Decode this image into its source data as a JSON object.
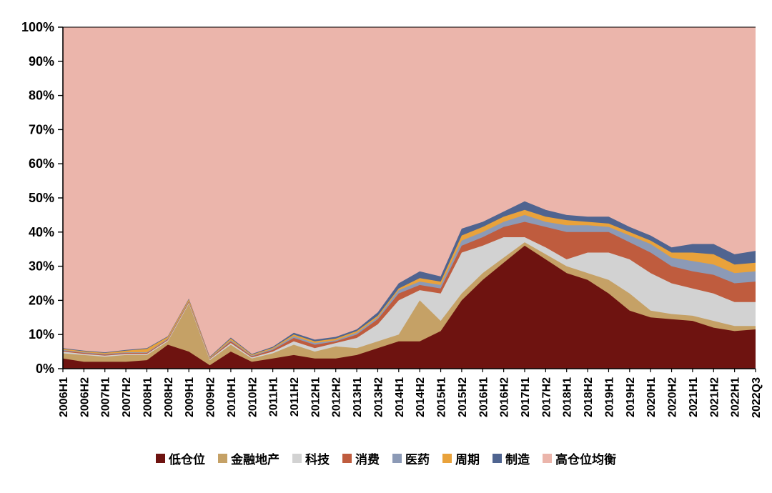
{
  "page": {
    "background": "#FFFFFF"
  },
  "chart_data": {
    "type": "area",
    "stacked": true,
    "percent": true,
    "title": "",
    "xlabel": "",
    "ylabel": "",
    "ylim": [
      0,
      100
    ],
    "grid": false,
    "legend_position": "bottom",
    "y_ticks": [
      "0%",
      "10%",
      "20%",
      "30%",
      "40%",
      "50%",
      "60%",
      "70%",
      "80%",
      "90%",
      "100%"
    ],
    "categories": [
      "2006H1",
      "2006H2",
      "2007H1",
      "2007H2",
      "2008H1",
      "2008H2",
      "2009H1",
      "2009H2",
      "2010H1",
      "2010H2",
      "2011H1",
      "2011H2",
      "2012H1",
      "2012H2",
      "2013H1",
      "2013H2",
      "2014H1",
      "2014H2",
      "2015H1",
      "2015H2",
      "2016H1",
      "2016H2",
      "2017H1",
      "2017H2",
      "2018H1",
      "2018H2",
      "2019H1",
      "2019H2",
      "2020H1",
      "2020H2",
      "2021H1",
      "2021H2",
      "2022H1",
      "2022Q3"
    ],
    "series": [
      {
        "name": "低仓位",
        "color": "#6E1310",
        "values": [
          3,
          2,
          2,
          2,
          2.5,
          7,
          5,
          1,
          5,
          2,
          3,
          4,
          3,
          3,
          4,
          6,
          8,
          8,
          11,
          20,
          26,
          31,
          36,
          32,
          28,
          26,
          22,
          17,
          15,
          14.5,
          14,
          12,
          11,
          11.5
        ]
      },
      {
        "name": "金融地产",
        "color": "#C5A166",
        "values": [
          1.5,
          2,
          1.5,
          2,
          1.5,
          1,
          14,
          1.5,
          2,
          1,
          1.5,
          3,
          2,
          3.5,
          2,
          2,
          2,
          12,
          3,
          2,
          2,
          1.5,
          1,
          1.5,
          2,
          2,
          4,
          5,
          2,
          1.5,
          1.5,
          2,
          1.5,
          1
        ]
      },
      {
        "name": "科技",
        "color": "#D2D2D2",
        "values": [
          0.5,
          0.3,
          0.3,
          0.3,
          0.3,
          0.3,
          0.3,
          0.3,
          0.5,
          0.3,
          0.5,
          1,
          1,
          1,
          3,
          5,
          10,
          3,
          8,
          12,
          8,
          6,
          1.5,
          2,
          2,
          6,
          8,
          10,
          11,
          9,
          8,
          8,
          7,
          7
        ]
      },
      {
        "name": "消费",
        "color": "#BF5C3E",
        "values": [
          0.3,
          0.3,
          0.3,
          0.3,
          0.3,
          0.3,
          0.3,
          0.2,
          0.5,
          0.3,
          0.5,
          1,
          1,
          0.5,
          1,
          1.5,
          2,
          1.5,
          1.5,
          2,
          2.5,
          3,
          4.5,
          6,
          8,
          6,
          6,
          5,
          6,
          5,
          5,
          5.5,
          5.5,
          6
        ]
      },
      {
        "name": "医药",
        "color": "#8C9AB6",
        "values": [
          0.2,
          0.2,
          0.2,
          0.2,
          0.2,
          0.2,
          0.2,
          0.1,
          0.3,
          0.2,
          0.3,
          0.5,
          0.5,
          0.3,
          0.5,
          0.5,
          1,
          1,
          1,
          1.5,
          1.5,
          1.5,
          2,
          1.5,
          2,
          2,
          1.5,
          2,
          2.5,
          2.5,
          3,
          3,
          3,
          3
        ]
      },
      {
        "name": "周期",
        "color": "#E9A23B",
        "values": [
          0.3,
          0.3,
          0.3,
          0.5,
          1,
          0.5,
          0.5,
          0.2,
          0.5,
          0.3,
          0.3,
          0.5,
          0.5,
          0.5,
          0.5,
          0.5,
          0.5,
          1,
          1,
          1.5,
          1.5,
          1.5,
          1.5,
          1.5,
          1.5,
          1,
          1,
          1,
          1,
          1.5,
          2.5,
          3,
          2.5,
          2.5
        ]
      },
      {
        "name": "制造",
        "color": "#4F6490",
        "values": [
          0.2,
          0.2,
          0.2,
          0.2,
          0.2,
          0.2,
          0.2,
          0.2,
          0.3,
          0.2,
          0.3,
          0.5,
          0.5,
          0.5,
          0.5,
          1,
          1.5,
          2,
          1.5,
          2,
          1.5,
          1.5,
          2.5,
          2,
          1.5,
          1.5,
          2,
          1.5,
          1.5,
          1.5,
          2.5,
          3,
          3,
          3.5
        ]
      },
      {
        "name": "高仓位均衡",
        "color": "#EBB5AB",
        "values": [
          94,
          94.7,
          95.2,
          94.5,
          94,
          90.5,
          79.5,
          96.5,
          90.9,
          95.7,
          93.6,
          89.5,
          91.5,
          90.7,
          88.5,
          83.5,
          75,
          71.5,
          73,
          59,
          57,
          54,
          51,
          53.5,
          55,
          55.5,
          55.5,
          58.5,
          61,
          64.5,
          63.5,
          63.5,
          66.5,
          65.5
        ]
      }
    ]
  }
}
